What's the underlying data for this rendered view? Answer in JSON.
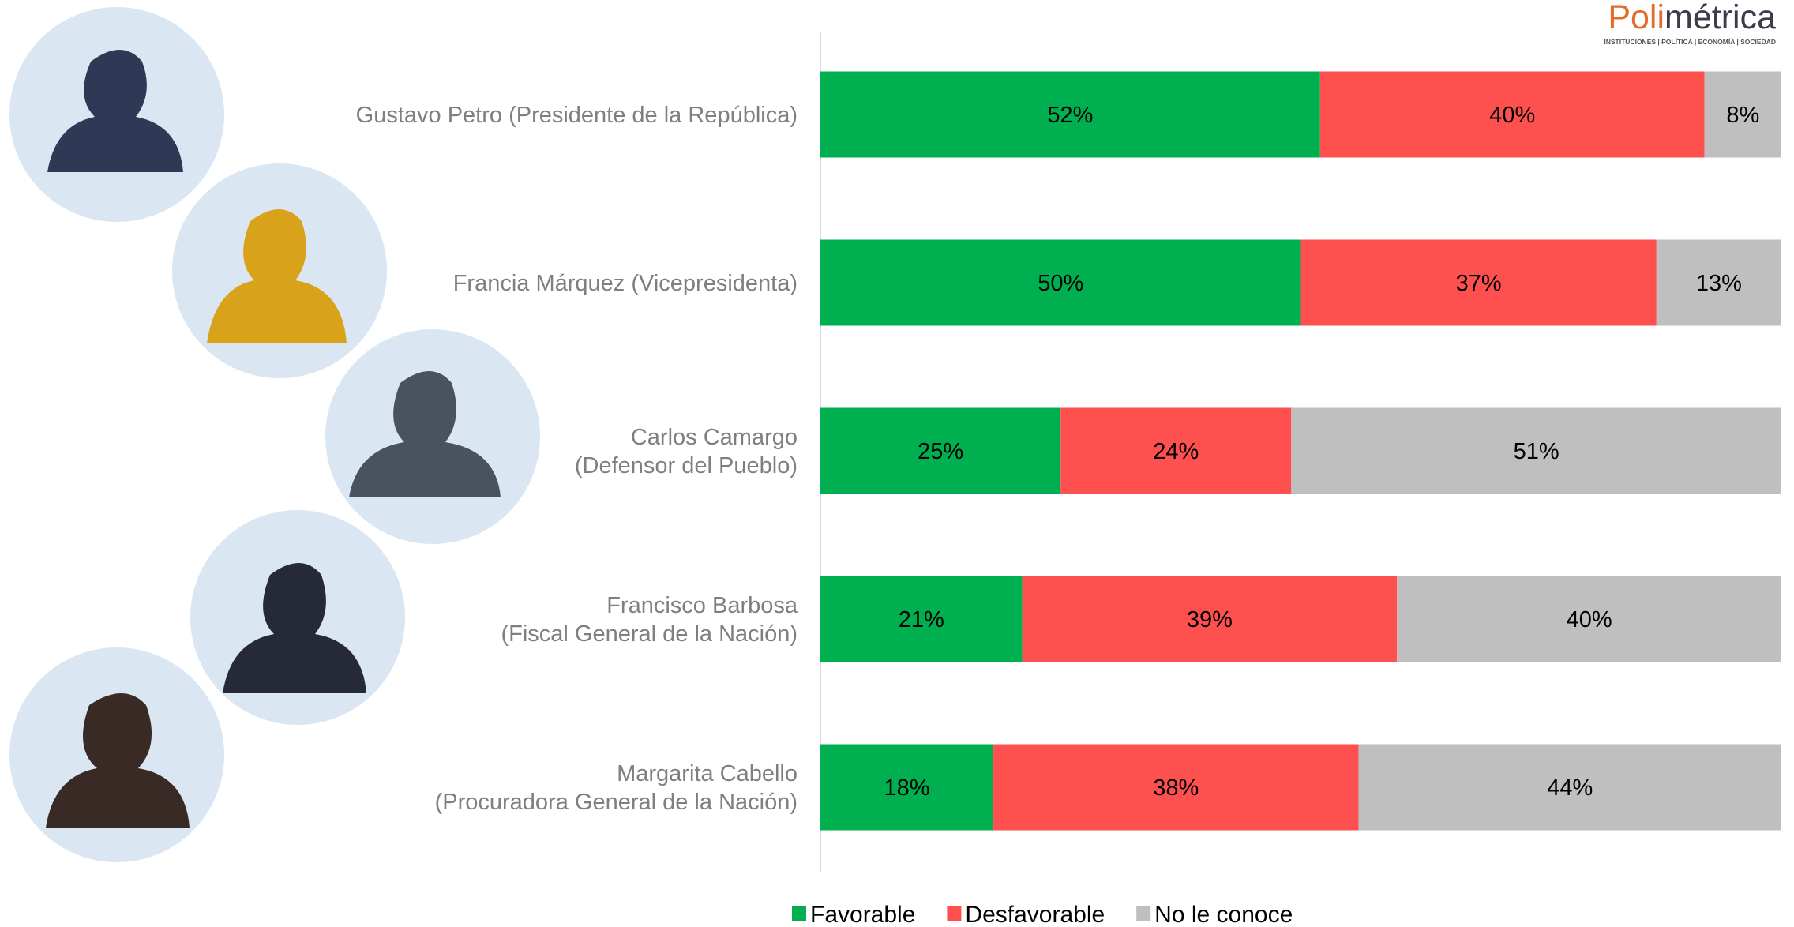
{
  "chart_data": {
    "type": "stacked-barh",
    "categories": [
      [
        "Gustavo Petro (Presidente de la República)"
      ],
      [
        "Francia Márquez (Vicepresidenta)"
      ],
      [
        "Carlos Camargo",
        "(Defensor del Pueblo)"
      ],
      [
        "Francisco Barbosa",
        "(Fiscal General de la Nación)"
      ],
      [
        "Margarita Cabello",
        "(Procuradora General de la Nación)"
      ]
    ],
    "series": [
      {
        "name": "Favorable",
        "color": "#00b050",
        "values": [
          52,
          50,
          25,
          21,
          18
        ],
        "value_labels": [
          "52%",
          "50%",
          "25%",
          "21%",
          "18%"
        ]
      },
      {
        "name": "Desfavorable",
        "color": "#ff5050",
        "values": [
          40,
          37,
          24,
          39,
          38
        ],
        "value_labels": [
          "40%",
          "37%",
          "24%",
          "39%",
          "38%"
        ]
      },
      {
        "name": "No le conoce",
        "color": "#bfbfbf",
        "values": [
          8,
          13,
          51,
          40,
          44
        ],
        "value_labels": [
          "8%",
          "13%",
          "51%",
          "40%",
          "44%"
        ]
      }
    ],
    "xlim": [
      0,
      100
    ],
    "legend": "bottom"
  },
  "logo": {
    "parts": [
      "Poli",
      "métrica"
    ],
    "tagline": "INSTITUCIONES | POLÍTICA | ECONOMÍA | SOCIEDAD"
  }
}
